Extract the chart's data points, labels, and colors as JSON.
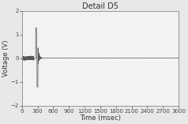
{
  "title": "Detail D5",
  "xlabel": "Time (msec)",
  "ylabel": "Voltage (V)",
  "xlim": [
    0,
    3000
  ],
  "ylim": [
    -2.0,
    2.0
  ],
  "xticks": [
    0,
    300,
    600,
    900,
    1200,
    1500,
    1800,
    2100,
    2400,
    2700,
    3000
  ],
  "yticks": [
    -2.0,
    -1.0,
    0.0,
    1.0,
    2.0
  ],
  "line_color": "#555555",
  "background_color": "#f0f0f0",
  "plot_bg_color": "#f0f0f0",
  "spine_color": "#aaaaaa",
  "title_fontsize": 7,
  "label_fontsize": 6,
  "tick_fontsize": 5,
  "signal_duration": 3000,
  "num_samples": 6000
}
